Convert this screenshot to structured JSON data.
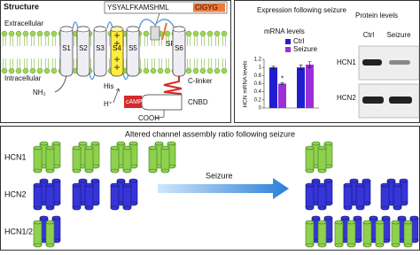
{
  "structure": {
    "title": "Structure",
    "extracellular": "Extracellular",
    "intracellular": "Intracellular",
    "n_terminus": "NH₂",
    "segments": [
      "S1",
      "S2",
      "S3",
      "S4",
      "S5",
      "S6"
    ],
    "sequence": "YSYALFKAMSHML",
    "filter_motif": "CIGYG",
    "selectivity_filter": "SF",
    "histidine": "His",
    "proton": "H⁺",
    "c_linker": "C-linker",
    "camp": "cAMP",
    "cnbd": "CNBD",
    "c_terminus": "COOH"
  },
  "expression": {
    "title": "Expression following seizure"
  },
  "chart_data": {
    "type": "bar",
    "title": "mRNA levels",
    "ylabel": "HCN mRNA levels",
    "categories": [
      null,
      null
    ],
    "series": [
      {
        "name": "Ctrl",
        "color": "#1f1fd0",
        "values": [
          1.0,
          1.0
        ],
        "errors": [
          0.03,
          0.06
        ]
      },
      {
        "name": "Seizure",
        "color": "#9b30d9",
        "values": [
          0.6,
          1.07
        ],
        "errors": [
          0.02,
          0.07
        ]
      }
    ],
    "annotation": "*",
    "ylim": [
      0,
      1.2
    ],
    "yticks": [
      0,
      0.2,
      0.4,
      0.6,
      0.8,
      1,
      1.2
    ],
    "legend": "top-right"
  },
  "protein": {
    "title": "Protein levels",
    "lanes": [
      "Ctrl",
      "Seizure"
    ],
    "rows": [
      "HCN1",
      "HCN2"
    ]
  },
  "assembly": {
    "title": "Altered channel assembly ratio following seizure",
    "rows": [
      "HCN1",
      "HCN2",
      "HCN1/2"
    ],
    "arrow_label": "Seizure"
  }
}
